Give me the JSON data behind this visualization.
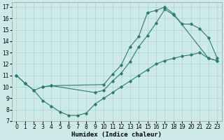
{
  "xlabel": "Humidex (Indice chaleur)",
  "line_color": "#2a7d6e",
  "bg_color": "#ceeae8",
  "grid_color": "#aad4d0",
  "xlim": [
    -0.5,
    23.5
  ],
  "ylim": [
    7,
    17.4
  ],
  "xticks": [
    0,
    1,
    2,
    3,
    4,
    5,
    6,
    7,
    8,
    9,
    10,
    11,
    12,
    13,
    14,
    15,
    16,
    17,
    18,
    19,
    20,
    21,
    22,
    23
  ],
  "yticks": [
    7,
    8,
    9,
    10,
    11,
    12,
    13,
    14,
    15,
    16,
    17
  ],
  "line1_x": [
    0,
    1,
    2,
    3,
    4,
    10,
    11,
    12,
    13,
    14,
    15,
    16,
    17,
    18,
    22,
    23
  ],
  "line1_y": [
    11,
    10.3,
    9.7,
    10.0,
    10.1,
    10.2,
    11.1,
    11.9,
    13.5,
    14.4,
    16.5,
    16.7,
    17.0,
    16.4,
    12.5,
    12.3
  ],
  "line2_x": [
    3,
    4,
    9,
    10,
    11,
    12,
    13,
    14,
    15,
    16,
    17,
    18,
    19,
    20,
    21,
    22,
    23
  ],
  "line2_y": [
    10.0,
    10.1,
    9.5,
    9.7,
    10.5,
    11.2,
    12.2,
    13.5,
    14.5,
    15.6,
    16.8,
    16.3,
    15.5,
    15.5,
    15.1,
    14.3,
    12.5
  ],
  "line3_x": [
    0,
    1,
    2,
    3,
    4,
    5,
    6,
    7,
    8,
    9,
    10,
    11,
    12,
    13,
    14,
    15,
    16,
    17,
    18,
    19,
    20,
    21,
    22,
    23
  ],
  "line3_y": [
    11,
    10.3,
    9.7,
    8.8,
    8.3,
    7.8,
    7.5,
    7.5,
    7.7,
    8.5,
    9.0,
    9.5,
    10.0,
    10.5,
    11.0,
    11.5,
    12.0,
    12.3,
    12.5,
    12.7,
    12.8,
    13.0,
    12.5,
    12.3
  ],
  "tick_fontsize": 5.5,
  "xlabel_fontsize": 6.5
}
